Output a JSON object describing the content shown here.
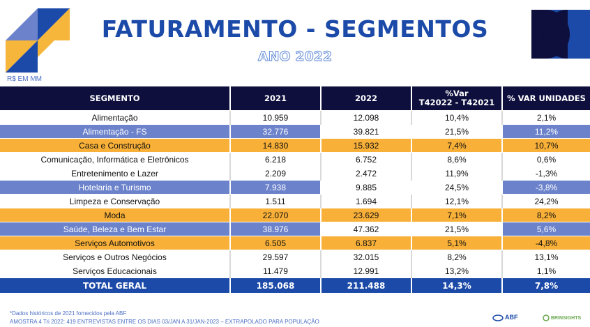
{
  "header": {
    "title": "FATURAMENTO - SEGMENTOS",
    "subtitle": "ANO 2022",
    "unit": "R$ EM MM"
  },
  "table": {
    "columns": [
      "SEGMENTO",
      "2021",
      "2022",
      "%Var\nT42022 - T42021",
      "% VAR UNIDADES"
    ],
    "rows": [
      {
        "segment": "Alimentação",
        "y2021": "10.959",
        "y2022": "12.098",
        "var": "10,4%",
        "var_units": "2,1%",
        "style": "white"
      },
      {
        "segment": "Alimentação - FS",
        "y2021": "32.776",
        "y2022": "39.821",
        "var": "21,5%",
        "var_units": "11,2%",
        "style": "blue"
      },
      {
        "segment": "Casa e Construção",
        "y2021": "14.830",
        "y2022": "15.932",
        "var": "7,4%",
        "var_units": "10,7%",
        "style": "orange"
      },
      {
        "segment": "Comunicação, Informática e Eletrônicos",
        "y2021": "6.218",
        "y2022": "6.752",
        "var": "8,6%",
        "var_units": "0,6%",
        "style": "white"
      },
      {
        "segment": "Entretenimento e Lazer",
        "y2021": "2.209",
        "y2022": "2.472",
        "var": "11,9%",
        "var_units": "-1,3%",
        "style": "white"
      },
      {
        "segment": "Hotelaria e Turismo",
        "y2021": "7.938",
        "y2022": "9.885",
        "var": "24,5%",
        "var_units": "-3,8%",
        "style": "blue"
      },
      {
        "segment": "Limpeza e Conservação",
        "y2021": "1.511",
        "y2022": "1.694",
        "var": "12,1%",
        "var_units": "24,2%",
        "style": "white"
      },
      {
        "segment": "Moda",
        "y2021": "22.070",
        "y2022": "23.629",
        "var": "7,1%",
        "var_units": "8,2%",
        "style": "orange"
      },
      {
        "segment": "Saúde, Beleza e Bem Estar",
        "y2021": "38.976",
        "y2022": "47.362",
        "var": "21,5%",
        "var_units": "5,6%",
        "style": "blue"
      },
      {
        "segment": "Serviços Automotivos",
        "y2021": "6.505",
        "y2022": "6.837",
        "var": "5,1%",
        "var_units": "-4,8%",
        "style": "orange"
      },
      {
        "segment": "Serviços e Outros Negócios",
        "y2021": "29.597",
        "y2022": "32.015",
        "var": "8,2%",
        "var_units": "13,1%",
        "style": "white"
      },
      {
        "segment": "Serviços Educacionais",
        "y2021": "11.479",
        "y2022": "12.991",
        "var": "13,2%",
        "var_units": "1,1%",
        "style": "white"
      }
    ],
    "total": {
      "segment": "TOTAL GERAL",
      "y2021": "185.068",
      "y2022": "211.488",
      "var": "14,3%",
      "var_units": "7,8%"
    }
  },
  "footer": {
    "note1": "*Dados históricos de 2021 fornecidos pela ABF",
    "note2": "AMOSTRA 4 Tri 2022: 419 ENTREVISTAS ENTRE OS DIAS 03/JAN A 31/JAN-2023 – EXTRAPOLADO PARA POPULAÇÃO",
    "brand1": "ABF",
    "brand2": "BRINSIGHTS"
  },
  "colors": {
    "navy": "#0e0f3d",
    "blue": "#1c4aa8",
    "row_blue": "#6c83cb",
    "row_orange": "#f8b038",
    "logo_yellow": "#f6b53b"
  },
  "icons": {
    "left_logo": "geometric-triangles-logo",
    "right_logo": "geometric-semicircles-logo"
  }
}
